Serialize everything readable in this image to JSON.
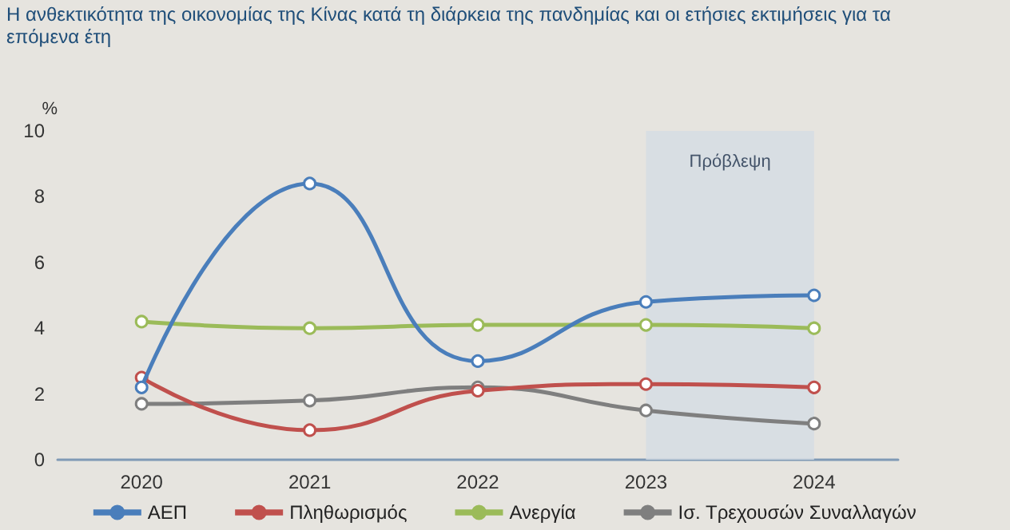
{
  "chart_data": {
    "type": "line",
    "title": "Η ανθεκτικότητα της οικονομίας της Κίνας κατά τη διάρκεια της πανδημίας και οι ετήσιες εκτιμήσεις για τα επόμενα έτη",
    "ylabel": "%",
    "categories": [
      "2020",
      "2021",
      "2022",
      "2023",
      "2024"
    ],
    "series": [
      {
        "name": "ΑΕΠ",
        "color": "#4a7ebb",
        "values": [
          2.2,
          8.4,
          3.0,
          4.8,
          5.0
        ]
      },
      {
        "name": "Πληθωρισμός",
        "color": "#c0504d",
        "values": [
          2.5,
          0.9,
          2.1,
          2.3,
          2.2
        ]
      },
      {
        "name": "Ανεργία",
        "color": "#9bbb59",
        "values": [
          4.2,
          4.0,
          4.1,
          4.1,
          4.0
        ]
      },
      {
        "name": "Ισ. Τρεχουσών Συναλλαγών",
        "color": "#7f7f7f",
        "values": [
          1.7,
          1.8,
          2.2,
          1.5,
          1.1
        ]
      }
    ],
    "ylim": [
      0,
      10
    ],
    "yticks": [
      0,
      2,
      4,
      6,
      8,
      10
    ],
    "grid": false,
    "legend": "bottom",
    "marker": "circle",
    "line_style": "solid",
    "bands": [
      {
        "axis": "x",
        "from": "2023",
        "to": "2024",
        "label": "Πρόβλεψη",
        "color": "#d5dce4"
      }
    ]
  }
}
